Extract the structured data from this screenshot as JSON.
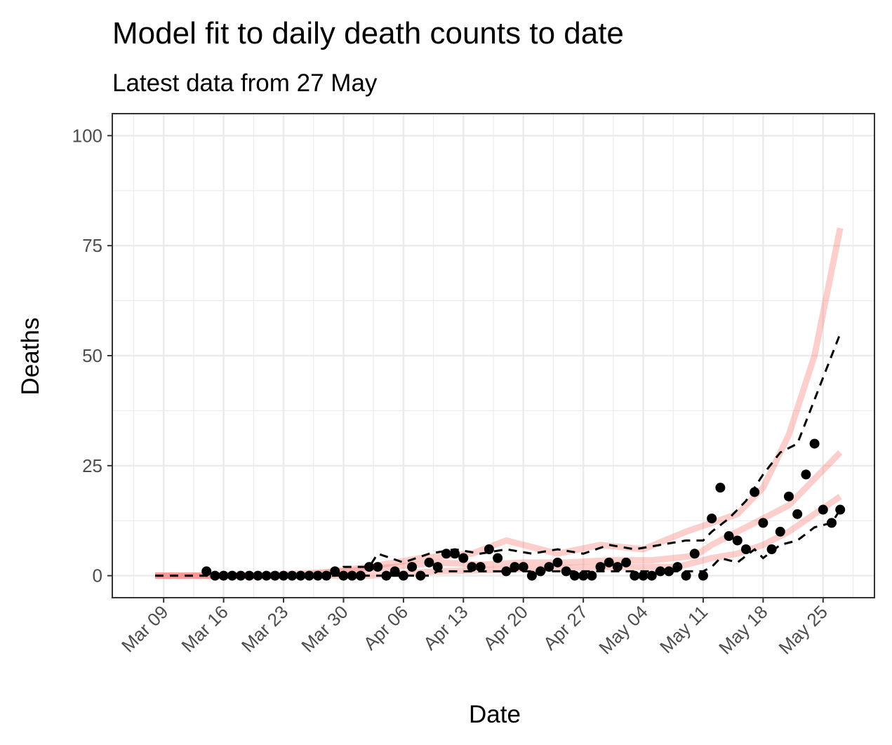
{
  "chart_data": {
    "type": "line",
    "title": "Model fit to daily death counts to date",
    "subtitle": "Latest data from 27 May",
    "x_label": "Date",
    "y_label": "Deaths",
    "xlim": [
      "Mar 03",
      "May 31"
    ],
    "ylim": [
      -5,
      105
    ],
    "xticks": [
      "Mar 09",
      "Mar 16",
      "Mar 23",
      "Mar 30",
      "Apr 06",
      "Apr 13",
      "Apr 20",
      "Apr 27",
      "May 04",
      "May 11",
      "May 18",
      "May 25"
    ],
    "yticks": [
      0,
      25,
      50,
      75,
      100
    ],
    "grid": true,
    "series": [
      {
        "kind": "line",
        "color": "#f8766d",
        "alpha": 0.35,
        "x": [
          "Mar 08",
          "Mar 20",
          "Mar 30",
          "Apr 05",
          "Apr 10",
          "Apr 15",
          "Apr 20",
          "Apr 25",
          "Apr 30",
          "May 05",
          "May 10",
          "May 12",
          "May 15",
          "May 18",
          "May 21",
          "May 24",
          "May 27"
        ],
        "values": [
          0,
          0,
          1,
          2,
          3,
          2.5,
          3,
          3,
          3.5,
          3.5,
          4.5,
          7,
          10,
          13,
          16,
          22,
          28
        ]
      },
      {
        "kind": "line",
        "color": "#f8766d",
        "alpha": 0.35,
        "x": [
          "Mar 08",
          "Mar 25",
          "Apr 02",
          "Apr 08",
          "Apr 14",
          "Apr 18",
          "Apr 24",
          "Apr 29",
          "May 04",
          "May 09",
          "May 12",
          "May 15",
          "May 18",
          "May 21",
          "May 24",
          "May 27"
        ],
        "values": [
          0,
          0,
          2,
          4,
          5,
          8,
          5,
          7,
          6,
          10,
          12,
          14,
          20,
          32,
          50,
          79
        ]
      },
      {
        "kind": "line",
        "color": "#f8766d",
        "alpha": 0.35,
        "x": [
          "Mar 08",
          "Apr 02",
          "Apr 10",
          "Apr 20",
          "Apr 30",
          "May 08",
          "May 12",
          "May 15",
          "May 18",
          "May 21",
          "May 24",
          "May 27"
        ],
        "values": [
          0,
          0,
          1,
          1.5,
          2,
          2,
          4,
          5,
          7,
          10,
          14,
          18
        ]
      },
      {
        "kind": "dashed",
        "color": "#000000",
        "x": [
          "Mar 08",
          "Mar 14",
          "Mar 29",
          "Mar 30",
          "Apr 02",
          "Apr 03",
          "Apr 06",
          "Apr 09",
          "Apr 12",
          "Apr 15",
          "Apr 18",
          "Apr 21",
          "Apr 24",
          "Apr 27",
          "Apr 30",
          "May 03",
          "May 06",
          "May 09",
          "May 11",
          "May 12",
          "May 14",
          "May 16",
          "May 18",
          "May 20",
          "May 22",
          "May 24",
          "May 27"
        ],
        "values": [
          0,
          0,
          0,
          2,
          2,
          5,
          3,
          5,
          6,
          5,
          6,
          5,
          6,
          5,
          7,
          6,
          7,
          8,
          8,
          10,
          13,
          17,
          23,
          28,
          30,
          40,
          55
        ]
      },
      {
        "kind": "dashed",
        "color": "#000000",
        "x": [
          "Mar 08",
          "Apr 09",
          "Apr 10",
          "May 11",
          "May 12",
          "May 13",
          "May 15",
          "May 17",
          "May 18",
          "May 20",
          "May 22",
          "May 24",
          "May 26",
          "May 27"
        ],
        "values": [
          0,
          0,
          1,
          1,
          2,
          4,
          3,
          6,
          4,
          7,
          8,
          11,
          12,
          15
        ]
      },
      {
        "kind": "points",
        "color": "#000000",
        "x": [
          "Mar 14",
          "Mar 15",
          "Mar 16",
          "Mar 17",
          "Mar 18",
          "Mar 19",
          "Mar 20",
          "Mar 21",
          "Mar 22",
          "Mar 23",
          "Mar 24",
          "Mar 25",
          "Mar 26",
          "Mar 27",
          "Mar 28",
          "Mar 29",
          "Mar 30",
          "Mar 31",
          "Apr 01",
          "Apr 02",
          "Apr 03",
          "Apr 04",
          "Apr 05",
          "Apr 06",
          "Apr 07",
          "Apr 08",
          "Apr 09",
          "Apr 10",
          "Apr 11",
          "Apr 12",
          "Apr 13",
          "Apr 14",
          "Apr 15",
          "Apr 16",
          "Apr 17",
          "Apr 18",
          "Apr 19",
          "Apr 20",
          "Apr 21",
          "Apr 22",
          "Apr 23",
          "Apr 24",
          "Apr 25",
          "Apr 26",
          "Apr 27",
          "Apr 28",
          "Apr 29",
          "Apr 30",
          "May 01",
          "May 02",
          "May 03",
          "May 04",
          "May 05",
          "May 06",
          "May 07",
          "May 08",
          "May 09",
          "May 10",
          "May 11",
          "May 12",
          "May 13",
          "May 14",
          "May 15",
          "May 16",
          "May 17",
          "May 18",
          "May 19",
          "May 20",
          "May 21",
          "May 22",
          "May 23",
          "May 24",
          "May 25",
          "May 26",
          "May 27"
        ],
        "values": [
          1,
          0,
          0,
          0,
          0,
          0,
          0,
          0,
          0,
          0,
          0,
          0,
          0,
          0,
          0,
          1,
          0,
          0,
          0,
          2,
          2,
          0,
          1,
          0,
          2,
          0,
          3,
          2,
          5,
          5,
          4,
          2,
          2,
          6,
          4,
          1,
          2,
          2,
          0,
          1,
          2,
          3,
          1,
          0,
          0,
          0,
          2,
          3,
          2,
          3,
          0,
          0,
          0,
          1,
          1,
          2,
          0,
          5,
          0,
          13,
          20,
          9,
          8,
          6,
          19,
          12,
          6,
          10,
          18,
          14,
          23,
          30,
          15,
          12,
          15
        ]
      }
    ]
  }
}
